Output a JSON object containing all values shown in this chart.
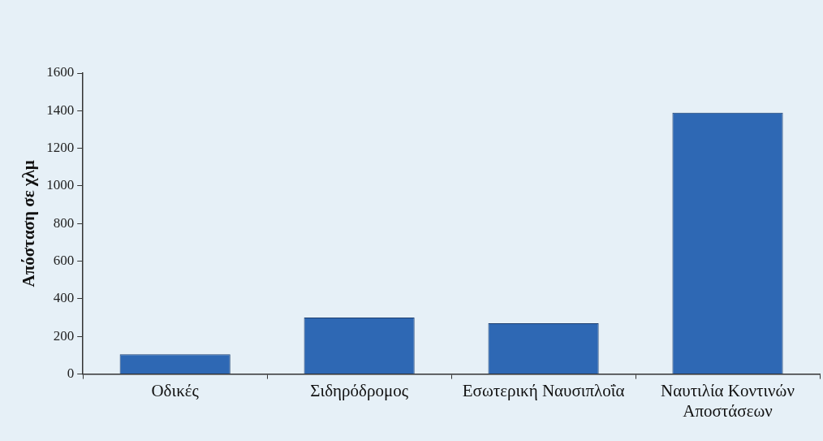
{
  "chart_data": {
    "type": "bar",
    "ylabel": "Απόσταση σε χλμ",
    "categories": [
      "Οδικές",
      "Σιδηρόδρομος",
      "Εσωτερική Ναυσιπλοΐα",
      "Ναυτιλία Κοντινών Αποστάσεων"
    ],
    "values": [
      105,
      300,
      270,
      1390
    ],
    "color": "#2e68b4",
    "ylim": [
      0,
      1600
    ],
    "yticks": [
      0,
      200,
      400,
      600,
      800,
      1000,
      1200,
      1400,
      1600
    ],
    "grid": false,
    "legend": false
  }
}
